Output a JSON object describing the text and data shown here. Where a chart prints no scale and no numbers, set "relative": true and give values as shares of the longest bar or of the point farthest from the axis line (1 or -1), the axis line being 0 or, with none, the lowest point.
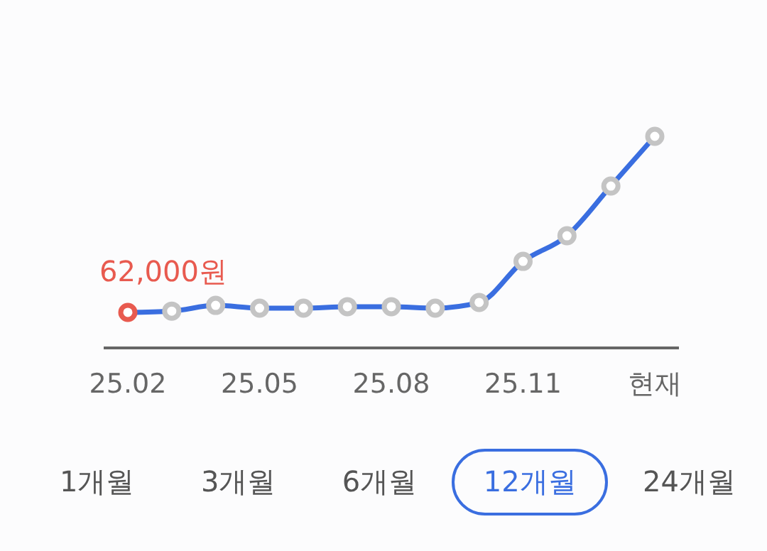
{
  "chart_data": {
    "type": "line",
    "relative": true,
    "categories": [
      "25.02",
      null,
      null,
      "25.05",
      null,
      null,
      "25.08",
      null,
      null,
      "25.11",
      null,
      null,
      "현재"
    ],
    "series": [
      {
        "color": "#3a6ee0",
        "colors": [
          "#e85a4f",
          "#c4c4c4",
          "#c4c4c4",
          "#c4c4c4",
          "#c4c4c4",
          "#c4c4c4",
          "#c4c4c4",
          "#c4c4c4",
          "#c4c4c4",
          "#c4c4c4",
          "#c4c4c4",
          "#c4c4c4",
          "#c4c4c4"
        ],
        "values": [
          0.168,
          0.174,
          0.201,
          0.188,
          0.188,
          0.195,
          0.195,
          0.188,
          0.215,
          0.409,
          0.53,
          0.765,
          1
        ]
      }
    ],
    "tick_labels": "x",
    "marker": "circle",
    "line_style": "solid",
    "annotations": [
      "62,000원",
      "1개월",
      "3개월",
      "6개월",
      "12개월",
      "24개월"
    ]
  }
}
